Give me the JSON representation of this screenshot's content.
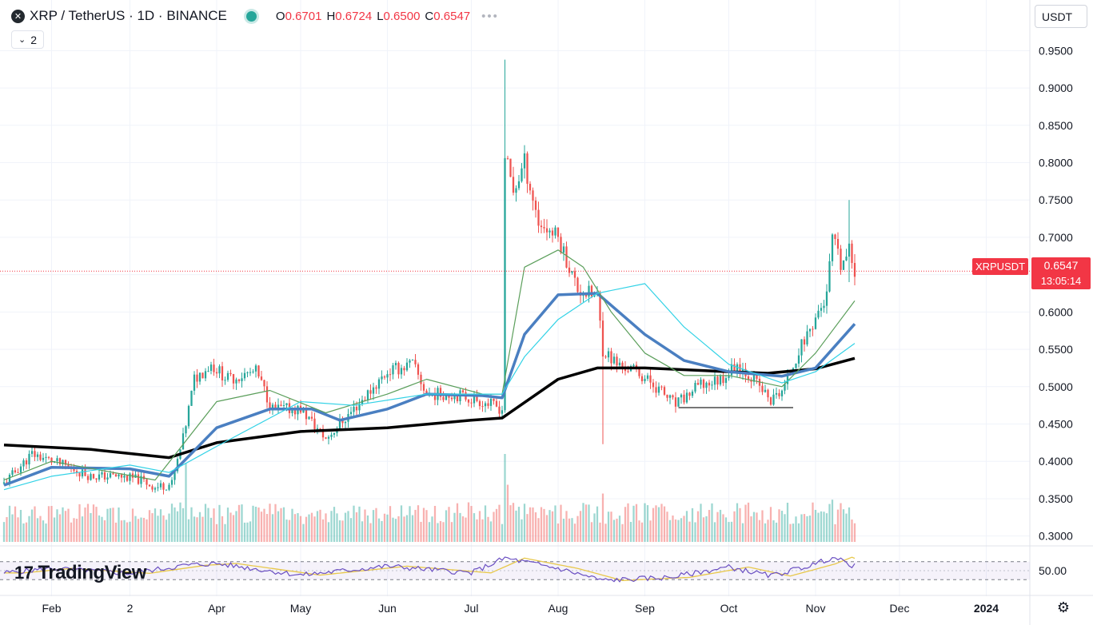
{
  "header": {
    "title": "XRP / TetherUS · 1D · BINANCE",
    "ohlc": [
      {
        "k": "O",
        "v": "0.6701"
      },
      {
        "k": "H",
        "v": "0.6724"
      },
      {
        "k": "L",
        "v": "0.6500"
      },
      {
        "k": "C",
        "v": "0.6547"
      }
    ],
    "more": "•••",
    "indicator_count": "2",
    "status_color": "#26a69a"
  },
  "axis_controls": {
    "currency": "USDT"
  },
  "price_tag": {
    "symbol": "XRPUSDT",
    "price": "0.6547",
    "countdown": "13:05:14",
    "color": "#f23645"
  },
  "branding": {
    "logo_text": "TradingView"
  },
  "icons": {
    "settings": "gear-icon",
    "close": "close-icon",
    "collapse": "chevron-down-icon"
  },
  "chart_data": {
    "type": "candlestick",
    "symbol": "XRPUSDT",
    "x_range": [
      "2023-01-15",
      "2024-01-10"
    ],
    "ylim": [
      0.29,
      0.975
    ],
    "y_ticks": [
      "0.9500",
      "0.9000",
      "0.8500",
      "0.8000",
      "0.7500",
      "0.7000",
      "0.6500",
      "0.6000",
      "0.5500",
      "0.5000",
      "0.4500",
      "0.4000",
      "0.3500",
      "0.3000"
    ],
    "x_ticks": [
      {
        "date": "2023-02-01",
        "label": "Feb"
      },
      {
        "date": "2023-03-01",
        "label": "2"
      },
      {
        "date": "2023-04-01",
        "label": "Apr"
      },
      {
        "date": "2023-05-01",
        "label": "May"
      },
      {
        "date": "2023-06-01",
        "label": "Jun"
      },
      {
        "date": "2023-07-01",
        "label": "Jul"
      },
      {
        "date": "2023-08-01",
        "label": "Aug"
      },
      {
        "date": "2023-09-01",
        "label": "Sep"
      },
      {
        "date": "2023-10-01",
        "label": "Oct"
      },
      {
        "date": "2023-11-01",
        "label": "Nov"
      },
      {
        "date": "2023-12-01",
        "label": "Dec"
      },
      {
        "date": "2024-01-01",
        "label": "2024"
      }
    ],
    "last_price": 0.6547,
    "price_path": [
      [
        "2023-01-15",
        0.37
      ],
      [
        "2023-01-25",
        0.41
      ],
      [
        "2023-02-05",
        0.395
      ],
      [
        "2023-02-15",
        0.38
      ],
      [
        "2023-02-25",
        0.38
      ],
      [
        "2023-03-05",
        0.375
      ],
      [
        "2023-03-10",
        0.365
      ],
      [
        "2023-03-16",
        0.37
      ],
      [
        "2023-03-20",
        0.43
      ],
      [
        "2023-03-24",
        0.51
      ],
      [
        "2023-03-30",
        0.53
      ],
      [
        "2023-04-05",
        0.51
      ],
      [
        "2023-04-15",
        0.52
      ],
      [
        "2023-04-21",
        0.47
      ],
      [
        "2023-05-01",
        0.47
      ],
      [
        "2023-05-10",
        0.43
      ],
      [
        "2023-05-20",
        0.47
      ],
      [
        "2023-06-01",
        0.52
      ],
      [
        "2023-06-10",
        0.53
      ],
      [
        "2023-06-15",
        0.49
      ],
      [
        "2023-06-25",
        0.49
      ],
      [
        "2023-07-05",
        0.48
      ],
      [
        "2023-07-12",
        0.47
      ],
      [
        "2023-07-13",
        0.81
      ],
      [
        "2023-07-16",
        0.76
      ],
      [
        "2023-07-20",
        0.8
      ],
      [
        "2023-07-25",
        0.72
      ],
      [
        "2023-08-01",
        0.7
      ],
      [
        "2023-08-08",
        0.63
      ],
      [
        "2023-08-15",
        0.62
      ],
      [
        "2023-08-17",
        0.55
      ],
      [
        "2023-08-22",
        0.53
      ],
      [
        "2023-08-29",
        0.52
      ],
      [
        "2023-09-05",
        0.5
      ],
      [
        "2023-09-12",
        0.475
      ],
      [
        "2023-09-20",
        0.5
      ],
      [
        "2023-09-28",
        0.51
      ],
      [
        "2023-10-04",
        0.53
      ],
      [
        "2023-10-10",
        0.51
      ],
      [
        "2023-10-16",
        0.48
      ],
      [
        "2023-10-21",
        0.5
      ],
      [
        "2023-10-25",
        0.54
      ],
      [
        "2023-11-02",
        0.6
      ],
      [
        "2023-11-05",
        0.62
      ],
      [
        "2023-11-07",
        0.7
      ],
      [
        "2023-11-10",
        0.66
      ],
      [
        "2023-11-13",
        0.68
      ],
      [
        "2023-11-15",
        0.655
      ]
    ],
    "wick_extremes": [
      {
        "date": "2023-07-13",
        "high": 0.938,
        "low": 0.465
      },
      {
        "date": "2023-08-17",
        "high": 0.6,
        "low": 0.423
      },
      {
        "date": "2023-11-13",
        "high": 0.75,
        "low": 0.64
      }
    ],
    "support_level": {
      "value": 0.472,
      "from": "2023-09-13",
      "to": "2023-10-24"
    },
    "series": [
      {
        "color": "#000000",
        "points": [
          [
            "2023-01-15",
            0.422
          ],
          [
            "2023-02-15",
            0.416
          ],
          [
            "2023-03-15",
            0.405
          ],
          [
            "2023-04-01",
            0.425
          ],
          [
            "2023-05-01",
            0.44
          ],
          [
            "2023-06-01",
            0.445
          ],
          [
            "2023-07-01",
            0.455
          ],
          [
            "2023-07-12",
            0.458
          ],
          [
            "2023-08-01",
            0.51
          ],
          [
            "2023-08-15",
            0.525
          ],
          [
            "2023-09-01",
            0.525
          ],
          [
            "2023-10-01",
            0.52
          ],
          [
            "2023-10-15",
            0.518
          ],
          [
            "2023-11-01",
            0.524
          ],
          [
            "2023-11-15",
            0.538
          ]
        ]
      },
      {
        "color": "#4a7fc1",
        "points": [
          [
            "2023-01-15",
            0.368
          ],
          [
            "2023-02-01",
            0.392
          ],
          [
            "2023-03-01",
            0.39
          ],
          [
            "2023-03-15",
            0.38
          ],
          [
            "2023-04-01",
            0.445
          ],
          [
            "2023-04-20",
            0.47
          ],
          [
            "2023-05-05",
            0.47
          ],
          [
            "2023-05-15",
            0.455
          ],
          [
            "2023-06-01",
            0.47
          ],
          [
            "2023-06-15",
            0.49
          ],
          [
            "2023-07-05",
            0.488
          ],
          [
            "2023-07-12",
            0.485
          ],
          [
            "2023-07-20",
            0.57
          ],
          [
            "2023-08-01",
            0.623
          ],
          [
            "2023-08-15",
            0.625
          ],
          [
            "2023-09-01",
            0.57
          ],
          [
            "2023-09-15",
            0.535
          ],
          [
            "2023-10-01",
            0.52
          ],
          [
            "2023-10-20",
            0.514
          ],
          [
            "2023-11-01",
            0.525
          ],
          [
            "2023-11-15",
            0.584
          ]
        ]
      },
      {
        "color": "#5a9e5a",
        "points": [
          [
            "2023-01-15",
            0.375
          ],
          [
            "2023-02-01",
            0.4
          ],
          [
            "2023-03-10",
            0.375
          ],
          [
            "2023-04-01",
            0.48
          ],
          [
            "2023-04-20",
            0.495
          ],
          [
            "2023-05-10",
            0.465
          ],
          [
            "2023-06-01",
            0.49
          ],
          [
            "2023-06-15",
            0.51
          ],
          [
            "2023-07-05",
            0.49
          ],
          [
            "2023-07-12",
            0.49
          ],
          [
            "2023-07-20",
            0.66
          ],
          [
            "2023-08-01",
            0.683
          ],
          [
            "2023-08-10",
            0.66
          ],
          [
            "2023-08-20",
            0.6
          ],
          [
            "2023-09-01",
            0.545
          ],
          [
            "2023-09-15",
            0.515
          ],
          [
            "2023-10-01",
            0.515
          ],
          [
            "2023-10-20",
            0.5
          ],
          [
            "2023-11-01",
            0.545
          ],
          [
            "2023-11-15",
            0.615
          ]
        ]
      },
      {
        "color": "#32d2e6",
        "points": [
          [
            "2023-01-15",
            0.362
          ],
          [
            "2023-02-01",
            0.38
          ],
          [
            "2023-03-01",
            0.395
          ],
          [
            "2023-03-15",
            0.385
          ],
          [
            "2023-04-01",
            0.42
          ],
          [
            "2023-05-01",
            0.48
          ],
          [
            "2023-05-20",
            0.475
          ],
          [
            "2023-06-15",
            0.49
          ],
          [
            "2023-07-12",
            0.49
          ],
          [
            "2023-07-20",
            0.54
          ],
          [
            "2023-08-01",
            0.59
          ],
          [
            "2023-08-15",
            0.625
          ],
          [
            "2023-09-01",
            0.638
          ],
          [
            "2023-09-15",
            0.58
          ],
          [
            "2023-10-01",
            0.53
          ],
          [
            "2023-10-20",
            0.505
          ],
          [
            "2023-11-01",
            0.52
          ],
          [
            "2023-11-15",
            0.558
          ]
        ]
      }
    ],
    "volume_spikes": [
      {
        "date": "2023-03-21",
        "height": 0.9
      },
      {
        "date": "2023-07-13",
        "height": 1.0
      },
      {
        "date": "2023-07-14",
        "height": 0.65
      },
      {
        "date": "2023-08-17",
        "height": 0.55
      },
      {
        "date": "2023-11-07",
        "height": 0.48
      }
    ],
    "rsi": {
      "y_tick": "50.00",
      "band": [
        30,
        70
      ],
      "line_color": "#6a4fc2",
      "ma_color": "#e8c84a",
      "values": [
        [
          "2023-01-15",
          45
        ],
        [
          "2023-02-01",
          55
        ],
        [
          "2023-03-01",
          44
        ],
        [
          "2023-03-21",
          62
        ],
        [
          "2023-04-01",
          66
        ],
        [
          "2023-05-01",
          40
        ],
        [
          "2023-06-01",
          60
        ],
        [
          "2023-07-01",
          45
        ],
        [
          "2023-07-13",
          78
        ],
        [
          "2023-08-01",
          55
        ],
        [
          "2023-08-17",
          28
        ],
        [
          "2023-09-10",
          35
        ],
        [
          "2023-10-01",
          58
        ],
        [
          "2023-10-16",
          38
        ],
        [
          "2023-11-01",
          65
        ],
        [
          "2023-11-07",
          80
        ],
        [
          "2023-11-15",
          60
        ]
      ]
    }
  }
}
